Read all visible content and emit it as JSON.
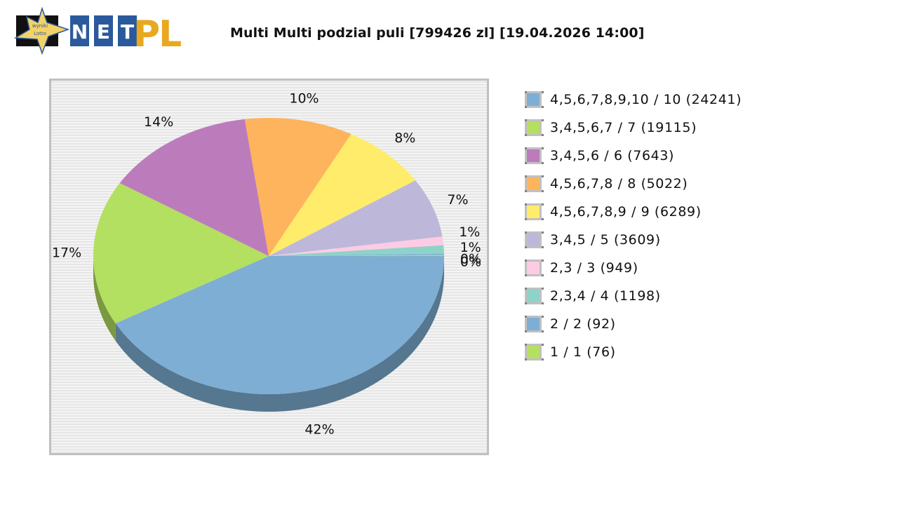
{
  "header": {
    "logo": {
      "badge_text_1": "wyniki",
      "badge_text_2": "Lotto",
      "net_letters": [
        "N",
        "E",
        "T"
      ],
      "pl_text": "PL"
    },
    "title": "Multi Multi podzial puli [799426 zl] [19.04.2026 14:00]"
  },
  "colors": {
    "net_blue": "#2a5a9b",
    "pl_gold": "#e8a820",
    "star_yellow": "#f3d267",
    "plot_border": "#c0c0c0"
  },
  "chart_data": {
    "type": "pie",
    "title": "Multi Multi podzial puli [799426 zl] [19.04.2026 14:00]",
    "total_pool": "799426 zl",
    "date": "19.04.2026 14:00",
    "style": "3d",
    "legend_position": "right",
    "slices": [
      {
        "label": "4,5,6,7,8,9,10 / 10 (24241)",
        "value": 24241,
        "percent_label": "42%",
        "percent": 42,
        "color": "#7eaed4",
        "side": "#55778f"
      },
      {
        "label": "3,4,5,6,7 / 7 (19115)",
        "value": 19115,
        "percent_label": "17%",
        "percent": 17,
        "color": "#b3e060",
        "side": "#7a9940"
      },
      {
        "label": "3,4,5,6 / 6 (7643)",
        "value": 7643,
        "percent_label": "14%",
        "percent": 14,
        "color": "#bc7cbc",
        "side": "#805480"
      },
      {
        "label": "4,5,6,7,8 / 8 (5022)",
        "value": 5022,
        "percent_label": "10%",
        "percent": 10,
        "color": "#fdb45c",
        "side": "#ad7b3f"
      },
      {
        "label": "4,5,6,7,8,9 / 9 (6289)",
        "value": 6289,
        "percent_label": "8%",
        "percent": 8,
        "color": "#ffec6a",
        "side": "#aea148"
      },
      {
        "label": "3,4,5 / 5 (3609)",
        "value": 3609,
        "percent_label": "7%",
        "percent": 7,
        "color": "#bdb8da",
        "side": "#817d95"
      },
      {
        "label": "2,3 / 3 (949)",
        "value": 949,
        "percent_label": "1%",
        "percent": 1,
        "color": "#fdcbe4",
        "side": "#ad8a9b"
      },
      {
        "label": "2,3,4 / 4 (1198)",
        "value": 1198,
        "percent_label": "1%",
        "percent": 1,
        "color": "#8dd3c7",
        "side": "#609088"
      },
      {
        "label": "2 / 2 (92)",
        "value": 92,
        "percent_label": "0%",
        "percent": 0.15,
        "color": "#7eaed4",
        "side": "#55778f"
      },
      {
        "label": "1 / 1 (76)",
        "value": 76,
        "percent_label": "0%",
        "percent": 0.1,
        "color": "#b3e060",
        "side": "#7a9940"
      }
    ]
  }
}
